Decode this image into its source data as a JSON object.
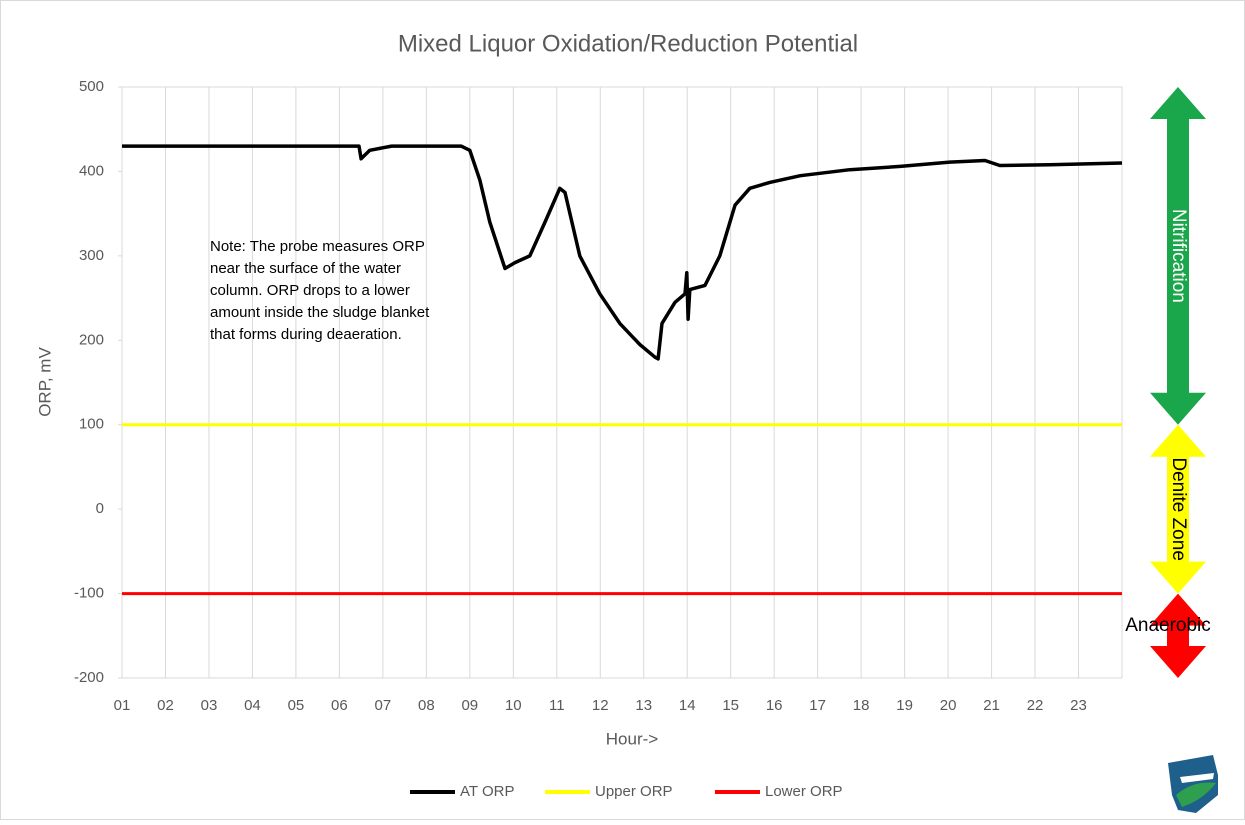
{
  "chart_data": {
    "type": "line",
    "title": "Mixed Liquor Oxidation/Reduction Potential",
    "xlabel": "Hour->",
    "ylabel": "ORP, mV",
    "xlim": [
      1,
      24
    ],
    "ylim": [
      -200,
      500
    ],
    "yticks": [
      -200,
      -100,
      0,
      100,
      200,
      300,
      400,
      500
    ],
    "xticks": [
      {
        "value": 1,
        "label": "01"
      },
      {
        "value": 2,
        "label": "02"
      },
      {
        "value": 3,
        "label": "03"
      },
      {
        "value": 4,
        "label": "04"
      },
      {
        "value": 5,
        "label": "05"
      },
      {
        "value": 6,
        "label": "06"
      },
      {
        "value": 7,
        "label": "07"
      },
      {
        "value": 8,
        "label": "08"
      },
      {
        "value": 9,
        "label": "09"
      },
      {
        "value": 10,
        "label": "10"
      },
      {
        "value": 11,
        "label": "11"
      },
      {
        "value": 12,
        "label": "12"
      },
      {
        "value": 13,
        "label": "13"
      },
      {
        "value": 14,
        "label": "14"
      },
      {
        "value": 15,
        "label": "15"
      },
      {
        "value": 16,
        "label": "16"
      },
      {
        "value": 17,
        "label": "17"
      },
      {
        "value": 18,
        "label": "18"
      },
      {
        "value": 19,
        "label": "19"
      },
      {
        "value": 20,
        "label": "20"
      },
      {
        "value": 21,
        "label": "21"
      },
      {
        "value": 22,
        "label": "22"
      },
      {
        "value": 23,
        "label": "23"
      }
    ],
    "grid": true,
    "series": [
      {
        "name": "AT ORP",
        "color": "#000000",
        "x": [
          1,
          3,
          6.45,
          6.5,
          6.7,
          7.2,
          8.8,
          9.0,
          9.23,
          9.46,
          9.81,
          10.04,
          10.38,
          10.73,
          11.07,
          11.19,
          11.53,
          11.99,
          12.45,
          12.91,
          13.26,
          13.33,
          13.42,
          13.72,
          13.95,
          13.99,
          14.02,
          14.06,
          14.41,
          14.75,
          15.1,
          15.44,
          15.9,
          16.6,
          17.74,
          18.9,
          20.04,
          20.85,
          21.19,
          22.34,
          24
        ],
        "values": [
          430,
          430,
          430,
          415,
          425,
          430,
          430,
          425,
          390,
          340,
          285,
          292,
          300,
          340,
          380,
          375,
          300,
          255,
          220,
          195,
          180,
          178,
          220,
          245,
          255,
          280,
          225,
          260,
          265,
          300,
          360,
          380,
          387,
          395,
          402,
          406,
          411,
          413,
          407,
          408,
          410
        ]
      },
      {
        "name": "Upper ORP",
        "color": "#ffff00",
        "x": [
          1,
          24
        ],
        "values": [
          100,
          100
        ]
      },
      {
        "name": "Lower ORP",
        "color": "#ff0000",
        "x": [
          1,
          24
        ],
        "values": [
          -100,
          -100
        ]
      }
    ],
    "annotation": [
      "Note:  The probe measures ORP",
      "near the surface of the water",
      "column.  ORP drops to a lower",
      "amount inside the sludge blanket",
      "that forms during deaeration."
    ],
    "zones": [
      {
        "label": "Nitrification",
        "from": 100,
        "to": 500,
        "color": "#1aa64a"
      },
      {
        "label": "Denite Zone",
        "from": -100,
        "to": 100,
        "color": "#ffff00"
      },
      {
        "label": "Anaerobic",
        "from": -200,
        "to": -100,
        "color": "#ff0000"
      }
    ]
  }
}
